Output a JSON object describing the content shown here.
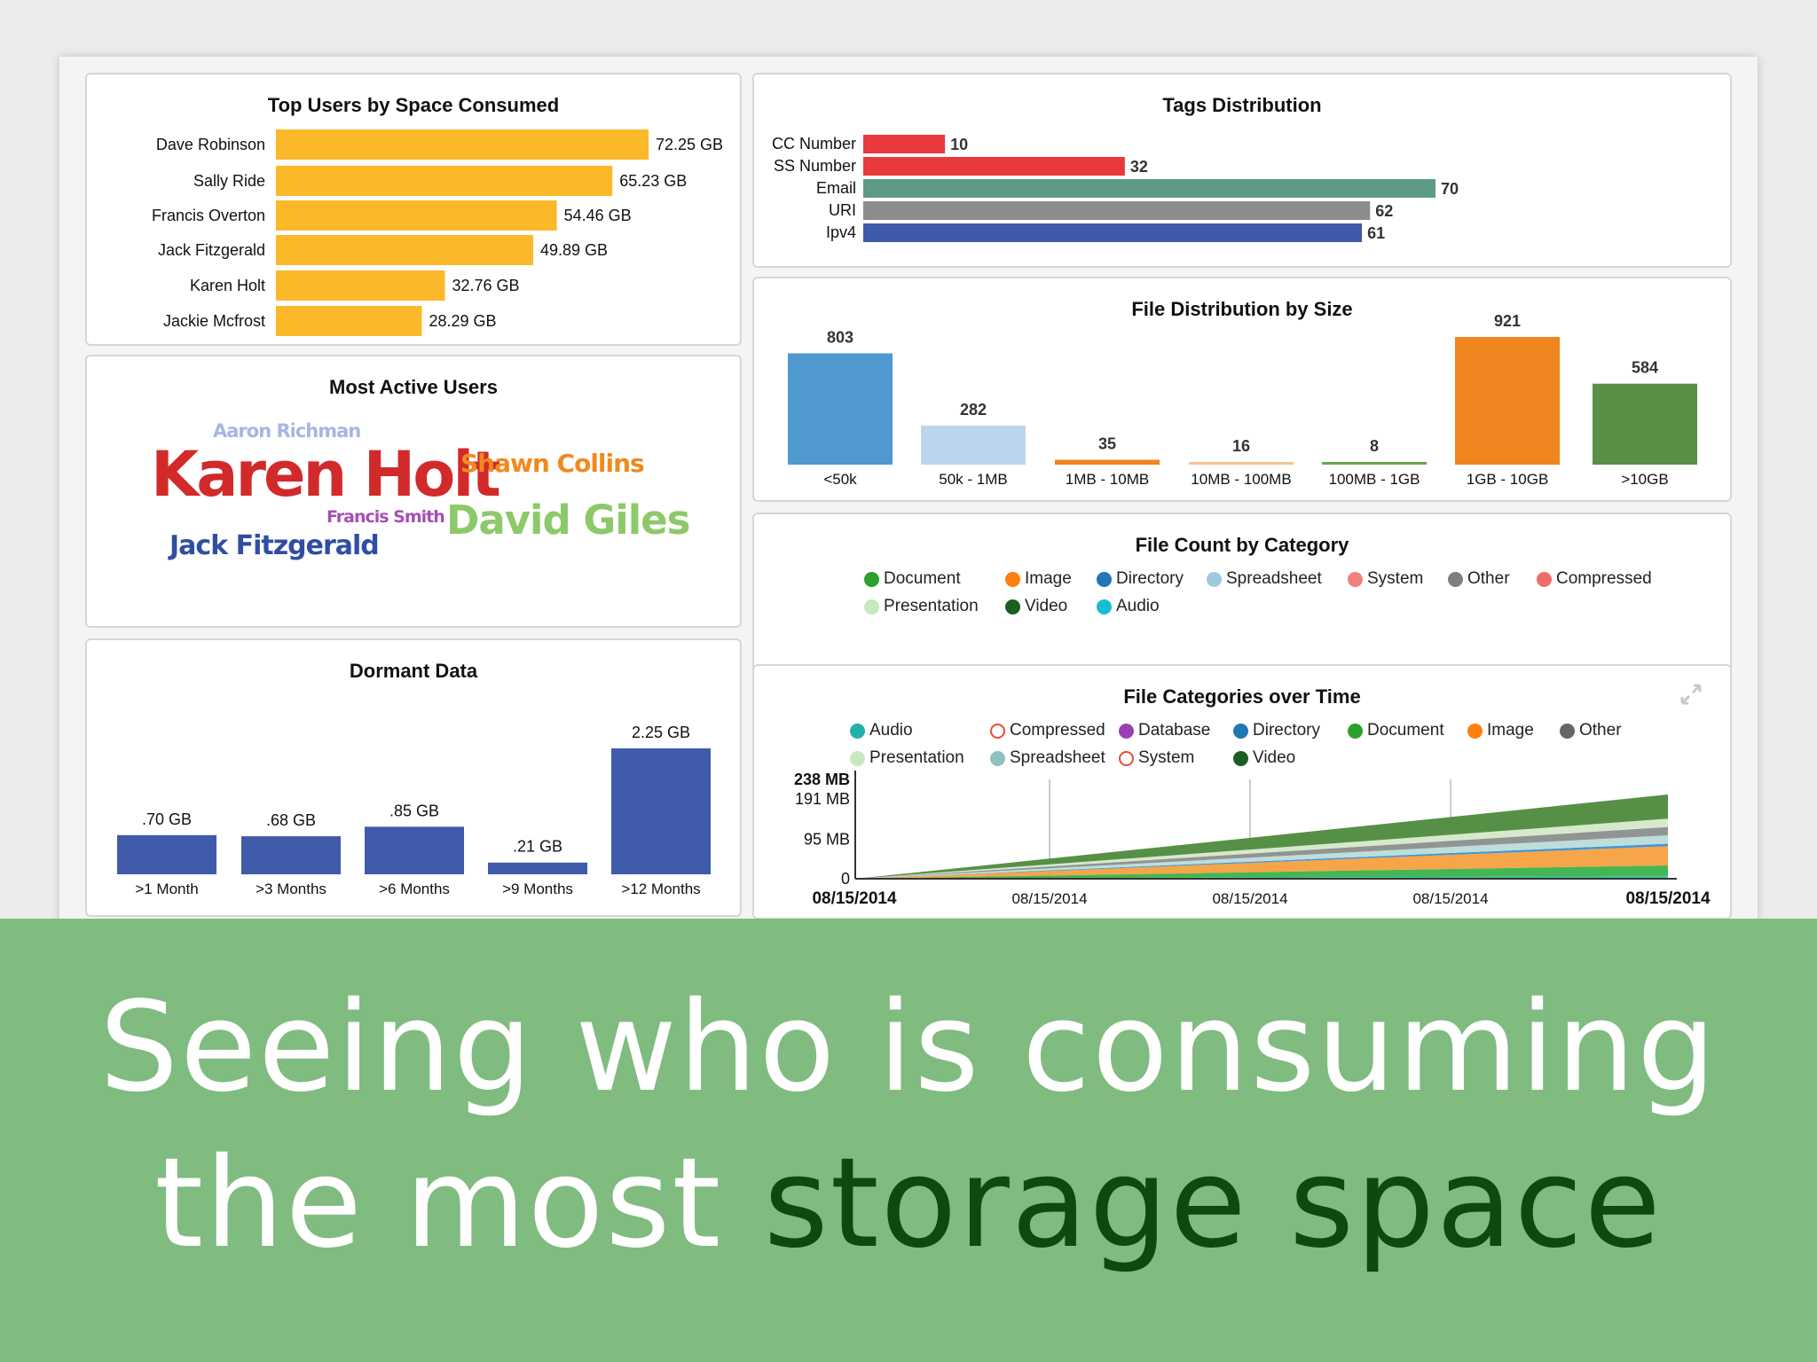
{
  "top_users": {
    "title": "Top Users by Space Consumed",
    "users": [
      {
        "name": "Dave Robinson",
        "label": "72.25 GB",
        "value": 72.25
      },
      {
        "name": "Sally Ride",
        "label": "65.23 GB",
        "value": 65.23
      },
      {
        "name": "Francis Overton",
        "label": "54.46 GB",
        "value": 54.46
      },
      {
        "name": "Jack Fitzgerald",
        "label": "49.89 GB",
        "value": 49.89
      },
      {
        "name": "Karen Holt",
        "label": "32.76 GB",
        "value": 32.76
      },
      {
        "name": "Jackie Mcfrost",
        "label": "28.29 GB",
        "value": 28.29
      }
    ],
    "color": "#fbb829"
  },
  "active_users": {
    "title": "Most Active Users",
    "words": [
      {
        "text": "Aaron Richman",
        "color": "#a7b6e3"
      },
      {
        "text": "Karen Holt",
        "color": "#d22a2a"
      },
      {
        "text": "Shawn Collins",
        "color": "#f08a1f"
      },
      {
        "text": "Francis Smith",
        "color": "#a64fb4"
      },
      {
        "text": "David Giles",
        "color": "#8cc96a"
      },
      {
        "text": "Jack Fitzgerald",
        "color": "#2f4ea3"
      }
    ]
  },
  "dormant": {
    "title": "Dormant Data",
    "bars": [
      {
        "category": ">1 Month",
        "label": ".70 GB",
        "value": 0.7
      },
      {
        "category": ">3 Months",
        "label": ".68 GB",
        "value": 0.68
      },
      {
        "category": ">6 Months",
        "label": ".85 GB",
        "value": 0.85
      },
      {
        "category": ">9 Months",
        "label": ".21 GB",
        "value": 0.21
      },
      {
        "category": ">12 Months",
        "label": "2.25 GB",
        "value": 2.25
      }
    ],
    "color": "#3f5ba9"
  },
  "tags": {
    "title": "Tags Distribution",
    "bars": [
      {
        "name": "CC Number",
        "value": 10,
        "color": "#e8393d"
      },
      {
        "name": "SS Number",
        "value": 32,
        "color": "#e8393d"
      },
      {
        "name": "Email",
        "value": 70,
        "color": "#5e9b84"
      },
      {
        "name": "URI",
        "value": 62,
        "color": "#8c8c8c"
      },
      {
        "name": "Ipv4",
        "value": 61,
        "color": "#3e5aa8"
      }
    ]
  },
  "file_size": {
    "title": "File Distribution by Size",
    "bars": [
      {
        "category": "<50k",
        "value": 803,
        "color": "#4f98d0"
      },
      {
        "category": "50k - 1MB",
        "value": 282,
        "color": "#bcd5ef"
      },
      {
        "category": "1MB - 10MB",
        "value": 35,
        "color": "#f0841f"
      },
      {
        "category": "10MB - 100MB",
        "value": 16,
        "color": "#f6c495"
      },
      {
        "category": "100MB - 1GB",
        "value": 8,
        "color": "#69a84f"
      },
      {
        "category": "1GB - 10GB",
        "value": 921,
        "color": "#f0841f"
      },
      {
        "category": ">10GB",
        "value": 584,
        "color": "#5a8f47"
      }
    ]
  },
  "file_count": {
    "title": "File Count by Category",
    "legend": [
      {
        "label": "Document",
        "color": "#2ca02c"
      },
      {
        "label": "Image",
        "color": "#ff7f0e"
      },
      {
        "label": "Directory",
        "color": "#1f77b4"
      },
      {
        "label": "Spreadsheet",
        "color": "#9ecae1"
      },
      {
        "label": "System",
        "color": "#f08080"
      },
      {
        "label": "Other",
        "color": "#7f7f7f"
      },
      {
        "label": "Compressed",
        "color": "#f26b6b"
      },
      {
        "label": "Presentation",
        "color": "#c7e9c0"
      },
      {
        "label": "Video",
        "color": "#1b5e20"
      },
      {
        "label": "Audio",
        "color": "#17becf"
      }
    ]
  },
  "time_chart": {
    "title": "File Categories over Time",
    "expand_icon": "expand-icon",
    "legend": [
      {
        "label": "Audio",
        "color": "#20b2aa",
        "hollow": false
      },
      {
        "label": "Compressed",
        "color": "#e74c3c",
        "hollow": true
      },
      {
        "label": "Database",
        "color": "#9b3fb5",
        "hollow": false
      },
      {
        "label": "Directory",
        "color": "#1f77b4",
        "hollow": false
      },
      {
        "label": "Document",
        "color": "#2ca02c",
        "hollow": false
      },
      {
        "label": "Image",
        "color": "#ff7f0e",
        "hollow": false
      },
      {
        "label": "Other",
        "color": "#666666",
        "hollow": false
      },
      {
        "label": "Presentation",
        "color": "#c7e9c0",
        "hollow": false
      },
      {
        "label": "Spreadsheet",
        "color": "#8fc1c1",
        "hollow": false
      },
      {
        "label": "System",
        "color": "#e74c3c",
        "hollow": true
      },
      {
        "label": "Video",
        "color": "#1b5e20",
        "hollow": false
      }
    ],
    "y_ticks": [
      "238 MB",
      "191 MB",
      "95 MB",
      "0"
    ],
    "x_ticks": [
      "08/15/2014",
      "08/15/2014",
      "08/15/2014",
      "08/15/2014",
      "08/15/2014"
    ]
  },
  "chart_data": [
    {
      "type": "bar",
      "title": "Top Users by Space Consumed",
      "orientation": "horizontal",
      "categories": [
        "Dave Robinson",
        "Sally Ride",
        "Francis Overton",
        "Jack Fitzgerald",
        "Karen Holt",
        "Jackie Mcfrost"
      ],
      "values": [
        72.25,
        65.23,
        54.46,
        49.89,
        32.76,
        28.29
      ]
    },
    {
      "type": "bar",
      "title": "Dormant Data",
      "categories": [
        ">1 Month",
        ">3 Months",
        ">6 Months",
        ">9 Months",
        ">12 Months"
      ],
      "values": [
        0.7,
        0.68,
        0.85,
        0.21,
        2.25
      ]
    },
    {
      "type": "bar",
      "title": "Tags Distribution",
      "orientation": "horizontal",
      "categories": [
        "CC Number",
        "SS Number",
        "Email",
        "URI",
        "Ipv4"
      ],
      "values": [
        10,
        32,
        70,
        62,
        61
      ]
    },
    {
      "type": "bar",
      "title": "File Distribution by Size",
      "categories": [
        "<50k",
        "50k - 1MB",
        "1MB - 10MB",
        "10MB - 100MB",
        "100MB - 1GB",
        "1GB - 10GB",
        ">10GB"
      ],
      "values": [
        803,
        282,
        35,
        16,
        8,
        921,
        584
      ]
    },
    {
      "type": "area",
      "title": "File Categories over Time",
      "stacked": true,
      "grid": true,
      "ylim": [
        0,
        238
      ],
      "x_tick_labels": [
        "08/15/2014",
        "08/15/2014",
        "08/15/2014",
        "08/15/2014",
        "08/15/2014"
      ],
      "series": [
        {
          "name": "Audio",
          "values": [
            0,
            6
          ]
        },
        {
          "name": "Document",
          "values": [
            0,
            26
          ]
        },
        {
          "name": "Image",
          "values": [
            0,
            46
          ]
        },
        {
          "name": "Directory",
          "values": [
            0,
            6
          ]
        },
        {
          "name": "Spreadsheet",
          "values": [
            0,
            20
          ]
        },
        {
          "name": "Other",
          "values": [
            0,
            20
          ]
        },
        {
          "name": "Presentation",
          "values": [
            0,
            20
          ]
        },
        {
          "name": "Video",
          "values": [
            0,
            58
          ]
        }
      ]
    }
  ],
  "banner": {
    "line1": "Seeing who is consuming",
    "line2_plain": "the most ",
    "line2_highlight": "storage space"
  }
}
